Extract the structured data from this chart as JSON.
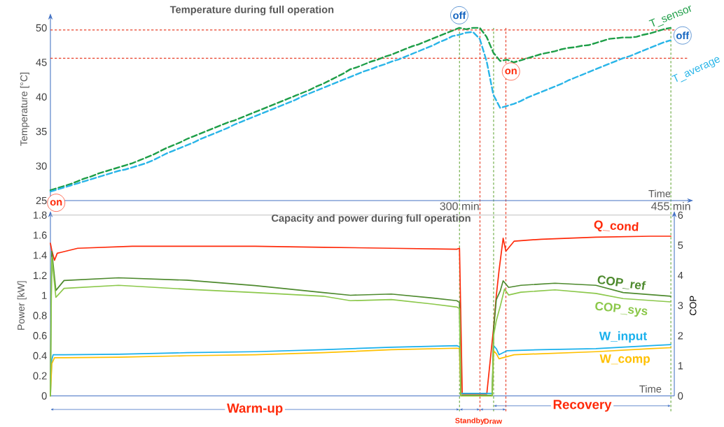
{
  "chart_data": [
    {
      "type": "line",
      "title": "Temperature during full operation",
      "xlabel": "Time",
      "ylabel": "Temperature [°C]",
      "categories": [
        null,
        null,
        null,
        null,
        null,
        null,
        null,
        null,
        null,
        null,
        null,
        null,
        null,
        null,
        null,
        null,
        null,
        null,
        null,
        null,
        null,
        null,
        null,
        null,
        null,
        null,
        null,
        null,
        null,
        null,
        null,
        null,
        null,
        null,
        null,
        null,
        null,
        null,
        null,
        null,
        null,
        null,
        null,
        null,
        null,
        null,
        null,
        null,
        null,
        null,
        null,
        null,
        null,
        null,
        null,
        null,
        null,
        null,
        null,
        null,
        null,
        null,
        null,
        null,
        null,
        null,
        null,
        null,
        null,
        null,
        null,
        null,
        null,
        null,
        null,
        null,
        null,
        null,
        null,
        null,
        null,
        null,
        null,
        null,
        null,
        null,
        null,
        null,
        null,
        null,
        null,
        null
      ],
      "ylim": [
        25,
        51.5
      ],
      "yticks": [
        25,
        30,
        35,
        40,
        45,
        50
      ],
      "line_style": "dashed",
      "legend": false,
      "series": [
        {
          "name": "T_sensor",
          "color": "#1e9e48",
          "values": [
            26.5,
            26.8,
            27.1,
            27.4,
            27.8,
            28.2,
            28.5,
            28.9,
            29.2,
            29.5,
            29.8,
            30.1,
            30.4,
            30.8,
            31.2,
            31.6,
            32.1,
            32.6,
            33.0,
            33.4,
            33.9,
            34.3,
            34.7,
            35.1,
            35.5,
            35.9,
            36.3,
            36.6,
            37.0,
            37.4,
            37.8,
            38.2,
            38.6,
            39.0,
            39.4,
            39.8,
            40.2,
            40.6,
            41.0,
            41.5,
            41.9,
            42.4,
            42.9,
            43.4,
            44.0,
            44.3,
            44.7,
            45.1,
            45.4,
            45.8,
            46.1,
            46.5,
            46.9,
            47.3,
            47.6,
            48.0,
            48.4,
            48.8,
            49.2,
            49.6,
            50.0,
            49.8,
            50.0,
            50.0,
            48.7,
            46.4,
            45.2,
            45.4,
            45.0,
            45.3,
            45.6,
            45.9,
            46.2,
            46.4,
            46.6,
            46.9,
            47.1,
            47.2,
            47.4,
            47.5,
            47.8,
            48.1,
            48.4,
            48.5,
            48.6,
            48.6,
            48.7,
            49.0,
            49.2,
            49.5,
            49.8,
            50.0
          ]
        },
        {
          "name": "T_average",
          "color": "#29b5e8",
          "values": [
            26.3,
            26.6,
            26.9,
            27.2,
            27.5,
            27.8,
            28.1,
            28.4,
            28.7,
            29.0,
            29.3,
            29.5,
            29.8,
            30.1,
            30.4,
            30.8,
            31.3,
            31.8,
            32.2,
            32.6,
            33.0,
            33.4,
            33.9,
            34.3,
            34.7,
            35.1,
            35.5,
            36.0,
            36.4,
            36.8,
            37.2,
            37.6,
            38.0,
            38.4,
            38.8,
            39.2,
            39.6,
            40.1,
            40.5,
            40.9,
            41.3,
            41.7,
            42.1,
            42.5,
            42.9,
            43.3,
            43.7,
            44.0,
            44.4,
            44.7,
            45.1,
            45.4,
            45.8,
            46.2,
            46.6,
            47.0,
            47.4,
            47.9,
            48.3,
            48.8,
            49.0,
            49.3,
            49.4,
            48.4,
            45.2,
            40.3,
            38.4,
            38.7,
            39.0,
            39.4,
            39.9,
            40.3,
            40.7,
            41.1,
            41.5,
            41.9,
            42.4,
            42.8,
            43.2,
            43.6,
            44.0,
            44.4,
            44.8,
            45.2,
            45.6,
            45.9,
            46.3,
            46.7,
            47.1,
            47.5,
            47.9,
            48.2
          ]
        }
      ],
      "ref_lines": [
        {
          "axis": "y",
          "value": 49.7,
          "color": "#e8402a",
          "line_style": "dashed"
        },
        {
          "axis": "y",
          "value": 45.6,
          "color": "#e8402a",
          "line_style": "dashed"
        }
      ],
      "annotations": [
        {
          "text": "on",
          "y": 26.3
        },
        {
          "text": "off",
          "y": 50.1
        },
        {
          "text": "on",
          "y": 45.6
        },
        {
          "text": "off",
          "y": 48.9
        }
      ]
    },
    {
      "type": "line",
      "title": "Capacity and power during full operation",
      "xlabel": "Time",
      "ylabel": "Power [kW]",
      "y2label": "COP",
      "xlim": [
        0,
        457.5
      ],
      "ylim": [
        0,
        1.8
      ],
      "y2lim": [
        0,
        6
      ],
      "xticks": [
        {
          "value": 300,
          "label": "300 min"
        },
        {
          "value": 455,
          "label": "455 min"
        }
      ],
      "yticks": [
        0,
        0.2,
        0.4,
        0.6,
        0.8,
        1,
        1.2,
        1.4,
        1.6,
        1.8
      ],
      "y2ticks": [
        0,
        1,
        2,
        3,
        4,
        5,
        6
      ],
      "legend": false,
      "series": [
        {
          "name": "Q_cond",
          "color": "#ff2a0a",
          "x": [
            0,
            1,
            3,
            5,
            8,
            20,
            60,
            100,
            150,
            200,
            250,
            298,
            300,
            302,
            320,
            325,
            327,
            329,
            332,
            334,
            340,
            360,
            400,
            440,
            455
          ],
          "values": [
            1.52,
            1.45,
            1.35,
            1.42,
            1.43,
            1.47,
            1.49,
            1.49,
            1.49,
            1.48,
            1.47,
            1.46,
            1.47,
            0.02,
            0.02,
            0.68,
            1.0,
            1.25,
            1.57,
            1.44,
            1.54,
            1.56,
            1.58,
            1.59,
            1.59
          ]
        },
        {
          "name": "COP_ref",
          "color": "#4e8a2e",
          "axis": "y2",
          "x": [
            0,
            0.5,
            1,
            4,
            10,
            50,
            100,
            150,
            200,
            220,
            250,
            280,
            298,
            300,
            301,
            324,
            325,
            327,
            330,
            332,
            336,
            345,
            370,
            400,
            420,
            455
          ],
          "values": [
            0,
            3.0,
            4.8,
            3.5,
            3.83,
            3.92,
            3.84,
            3.66,
            3.43,
            3.34,
            3.38,
            3.25,
            3.16,
            3.1,
            0.02,
            0.02,
            2.2,
            3.2,
            3.5,
            3.82,
            3.6,
            3.67,
            3.74,
            3.67,
            3.43,
            3.31
          ]
        },
        {
          "name": "COP_sys",
          "color": "#8cc84b",
          "axis": "y2",
          "x": [
            0,
            0.5,
            1,
            4,
            10,
            50,
            100,
            150,
            200,
            220,
            250,
            280,
            298,
            300,
            301,
            324,
            325,
            327,
            330,
            333,
            336,
            345,
            370,
            400,
            420,
            455
          ],
          "values": [
            0,
            2.5,
            4.6,
            3.27,
            3.57,
            3.67,
            3.54,
            3.43,
            3.31,
            3.16,
            3.2,
            3.05,
            2.95,
            2.9,
            0,
            0,
            2.0,
            2.5,
            3.0,
            3.55,
            3.35,
            3.44,
            3.52,
            3.4,
            3.23,
            3.12
          ]
        },
        {
          "name": "W_input",
          "color": "#19b0ec",
          "x": [
            0,
            1,
            2,
            10,
            50,
            100,
            150,
            200,
            250,
            298,
            300,
            301,
            324,
            325,
            327,
            329,
            335,
            360,
            400,
            440,
            455
          ],
          "values": [
            0,
            0.36,
            0.41,
            0.41,
            0.415,
            0.43,
            0.44,
            0.46,
            0.485,
            0.5,
            0.49,
            0.025,
            0.025,
            0.5,
            0.47,
            0.41,
            0.45,
            0.46,
            0.47,
            0.5,
            0.51
          ]
        },
        {
          "name": "W_comp",
          "color": "#ffc000",
          "x": [
            0,
            1,
            3,
            10,
            50,
            100,
            150,
            200,
            250,
            298,
            300,
            301,
            324,
            325,
            327,
            329,
            340,
            400,
            440,
            455
          ],
          "values": [
            0,
            0.32,
            0.38,
            0.38,
            0.385,
            0.4,
            0.41,
            0.43,
            0.46,
            0.475,
            0.47,
            0,
            0,
            0.45,
            0.42,
            0.37,
            0.41,
            0.44,
            0.47,
            0.48
          ]
        }
      ],
      "ref_lines": [
        {
          "axis": "x",
          "value": 300,
          "color": "#70ad47",
          "line_style": "dashed"
        },
        {
          "axis": "x",
          "value": 315,
          "color": "#e8402a",
          "line_style": "dashed"
        },
        {
          "axis": "x",
          "value": 325,
          "color": "#70ad47",
          "line_style": "dashed"
        },
        {
          "axis": "x",
          "value": 334,
          "color": "#e8402a",
          "line_style": "dashed"
        },
        {
          "axis": "x",
          "value": 455,
          "color": "#70ad47",
          "line_style": "dashed"
        }
      ],
      "annotations": [
        "Warm-up",
        "Standby",
        "Draw",
        "Recovery"
      ]
    }
  ]
}
